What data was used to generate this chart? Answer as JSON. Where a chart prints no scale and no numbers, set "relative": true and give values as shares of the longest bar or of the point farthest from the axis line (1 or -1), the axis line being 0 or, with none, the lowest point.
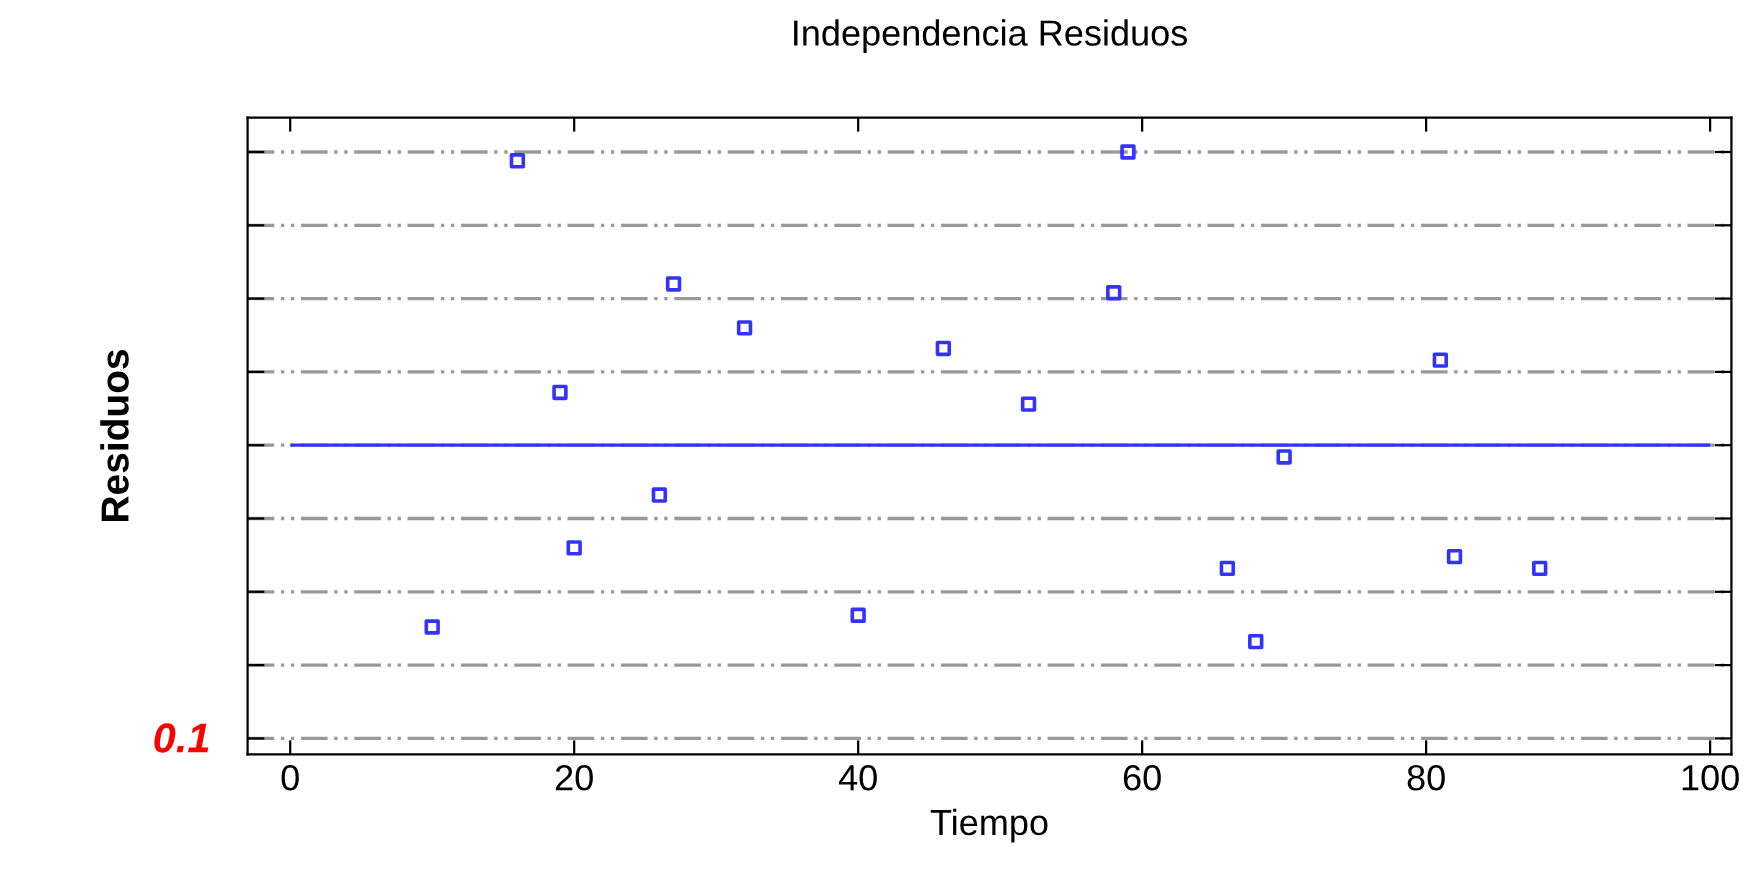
{
  "chart_data": {
    "type": "scatter",
    "title": "Independencia Residuos",
    "xlabel": "Tiempo",
    "ylabel": "Residuos",
    "relative": true,
    "x": [
      10,
      16,
      19,
      20,
      26,
      27,
      32,
      40,
      46,
      52,
      58,
      59,
      66,
      68,
      70,
      81,
      82,
      88
    ],
    "series": [
      {
        "color": "#3333ff",
        "values": [
          -0.62,
          0.97,
          0.18,
          -0.35,
          -0.17,
          0.55,
          0.4,
          -0.58,
          0.33,
          0.14,
          0.52,
          1,
          -0.42,
          -0.67,
          -0.04,
          0.29,
          -0.38,
          -0.42
        ]
      }
    ],
    "marker": "square",
    "grid": "y",
    "xlim": [
      -3,
      101.5
    ],
    "xticks": [
      0,
      20,
      40,
      60,
      80,
      100
    ],
    "ref_lines": [
      {
        "axis": "y",
        "value": 0,
        "color": "#3333ff",
        "line_style": "solid"
      }
    ],
    "annotations": [
      "0.1"
    ]
  }
}
